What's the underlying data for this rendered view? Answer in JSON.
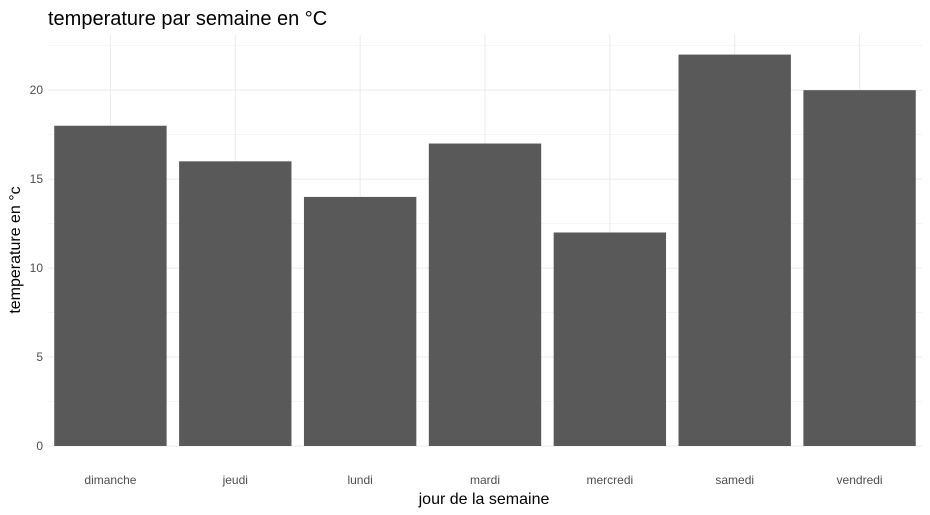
{
  "chart_data": {
    "type": "bar",
    "title": "temperature par semaine en °C",
    "xlabel": "jour de la semaine",
    "ylabel": "temperature en °c",
    "categories": [
      "dimanche",
      "jeudi",
      "lundi",
      "mardi",
      "mercredi",
      "samedi",
      "vendredi"
    ],
    "values": [
      18,
      16,
      14,
      17,
      12,
      22,
      20
    ],
    "ylim": [
      0,
      23.1
    ],
    "yticks": [
      0,
      5,
      10,
      15,
      20
    ],
    "grid": true,
    "bar_color": "#595959",
    "grid_major_color": "#ebebeb",
    "grid_minor_color": "#f2f2f2",
    "background_color": "#ffffff"
  }
}
